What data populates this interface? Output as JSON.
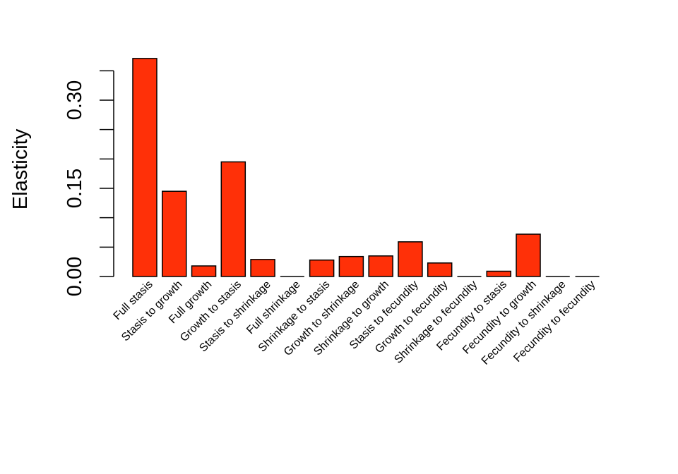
{
  "chart_data": {
    "type": "bar",
    "ylabel": "Elasticity",
    "ylim": [
      0,
      0.35
    ],
    "yticks": [
      0,
      0.05,
      0.1,
      0.15,
      0.2,
      0.25,
      0.3,
      0.35
    ],
    "ytick_labels": [
      "0.00",
      "0.15",
      "0.30"
    ],
    "ytick_label_values": [
      0,
      0.15,
      0.3
    ],
    "bar_color": "#ff3008",
    "categories": [
      "Full stasis",
      "Stasis to growth",
      "Full growth",
      "Growth to stasis",
      "Stasis to shrinkage",
      "Full shrinkage",
      "Shrinkage to stasis",
      "Growth to shrinkage",
      "Shrinkage to growth",
      "Stasis to fecundity",
      "Growth to fecundity",
      "Shrinkage to fecundity",
      "Fecundity to stasis",
      "Fecundity to growth",
      "Fecundity to shrinkage",
      "Fecundity to fecundity"
    ],
    "values": [
      0.371,
      0.145,
      0.018,
      0.195,
      0.029,
      0.0,
      0.028,
      0.034,
      0.035,
      0.059,
      0.023,
      0.0,
      0.009,
      0.072,
      0.0,
      0.0
    ]
  }
}
